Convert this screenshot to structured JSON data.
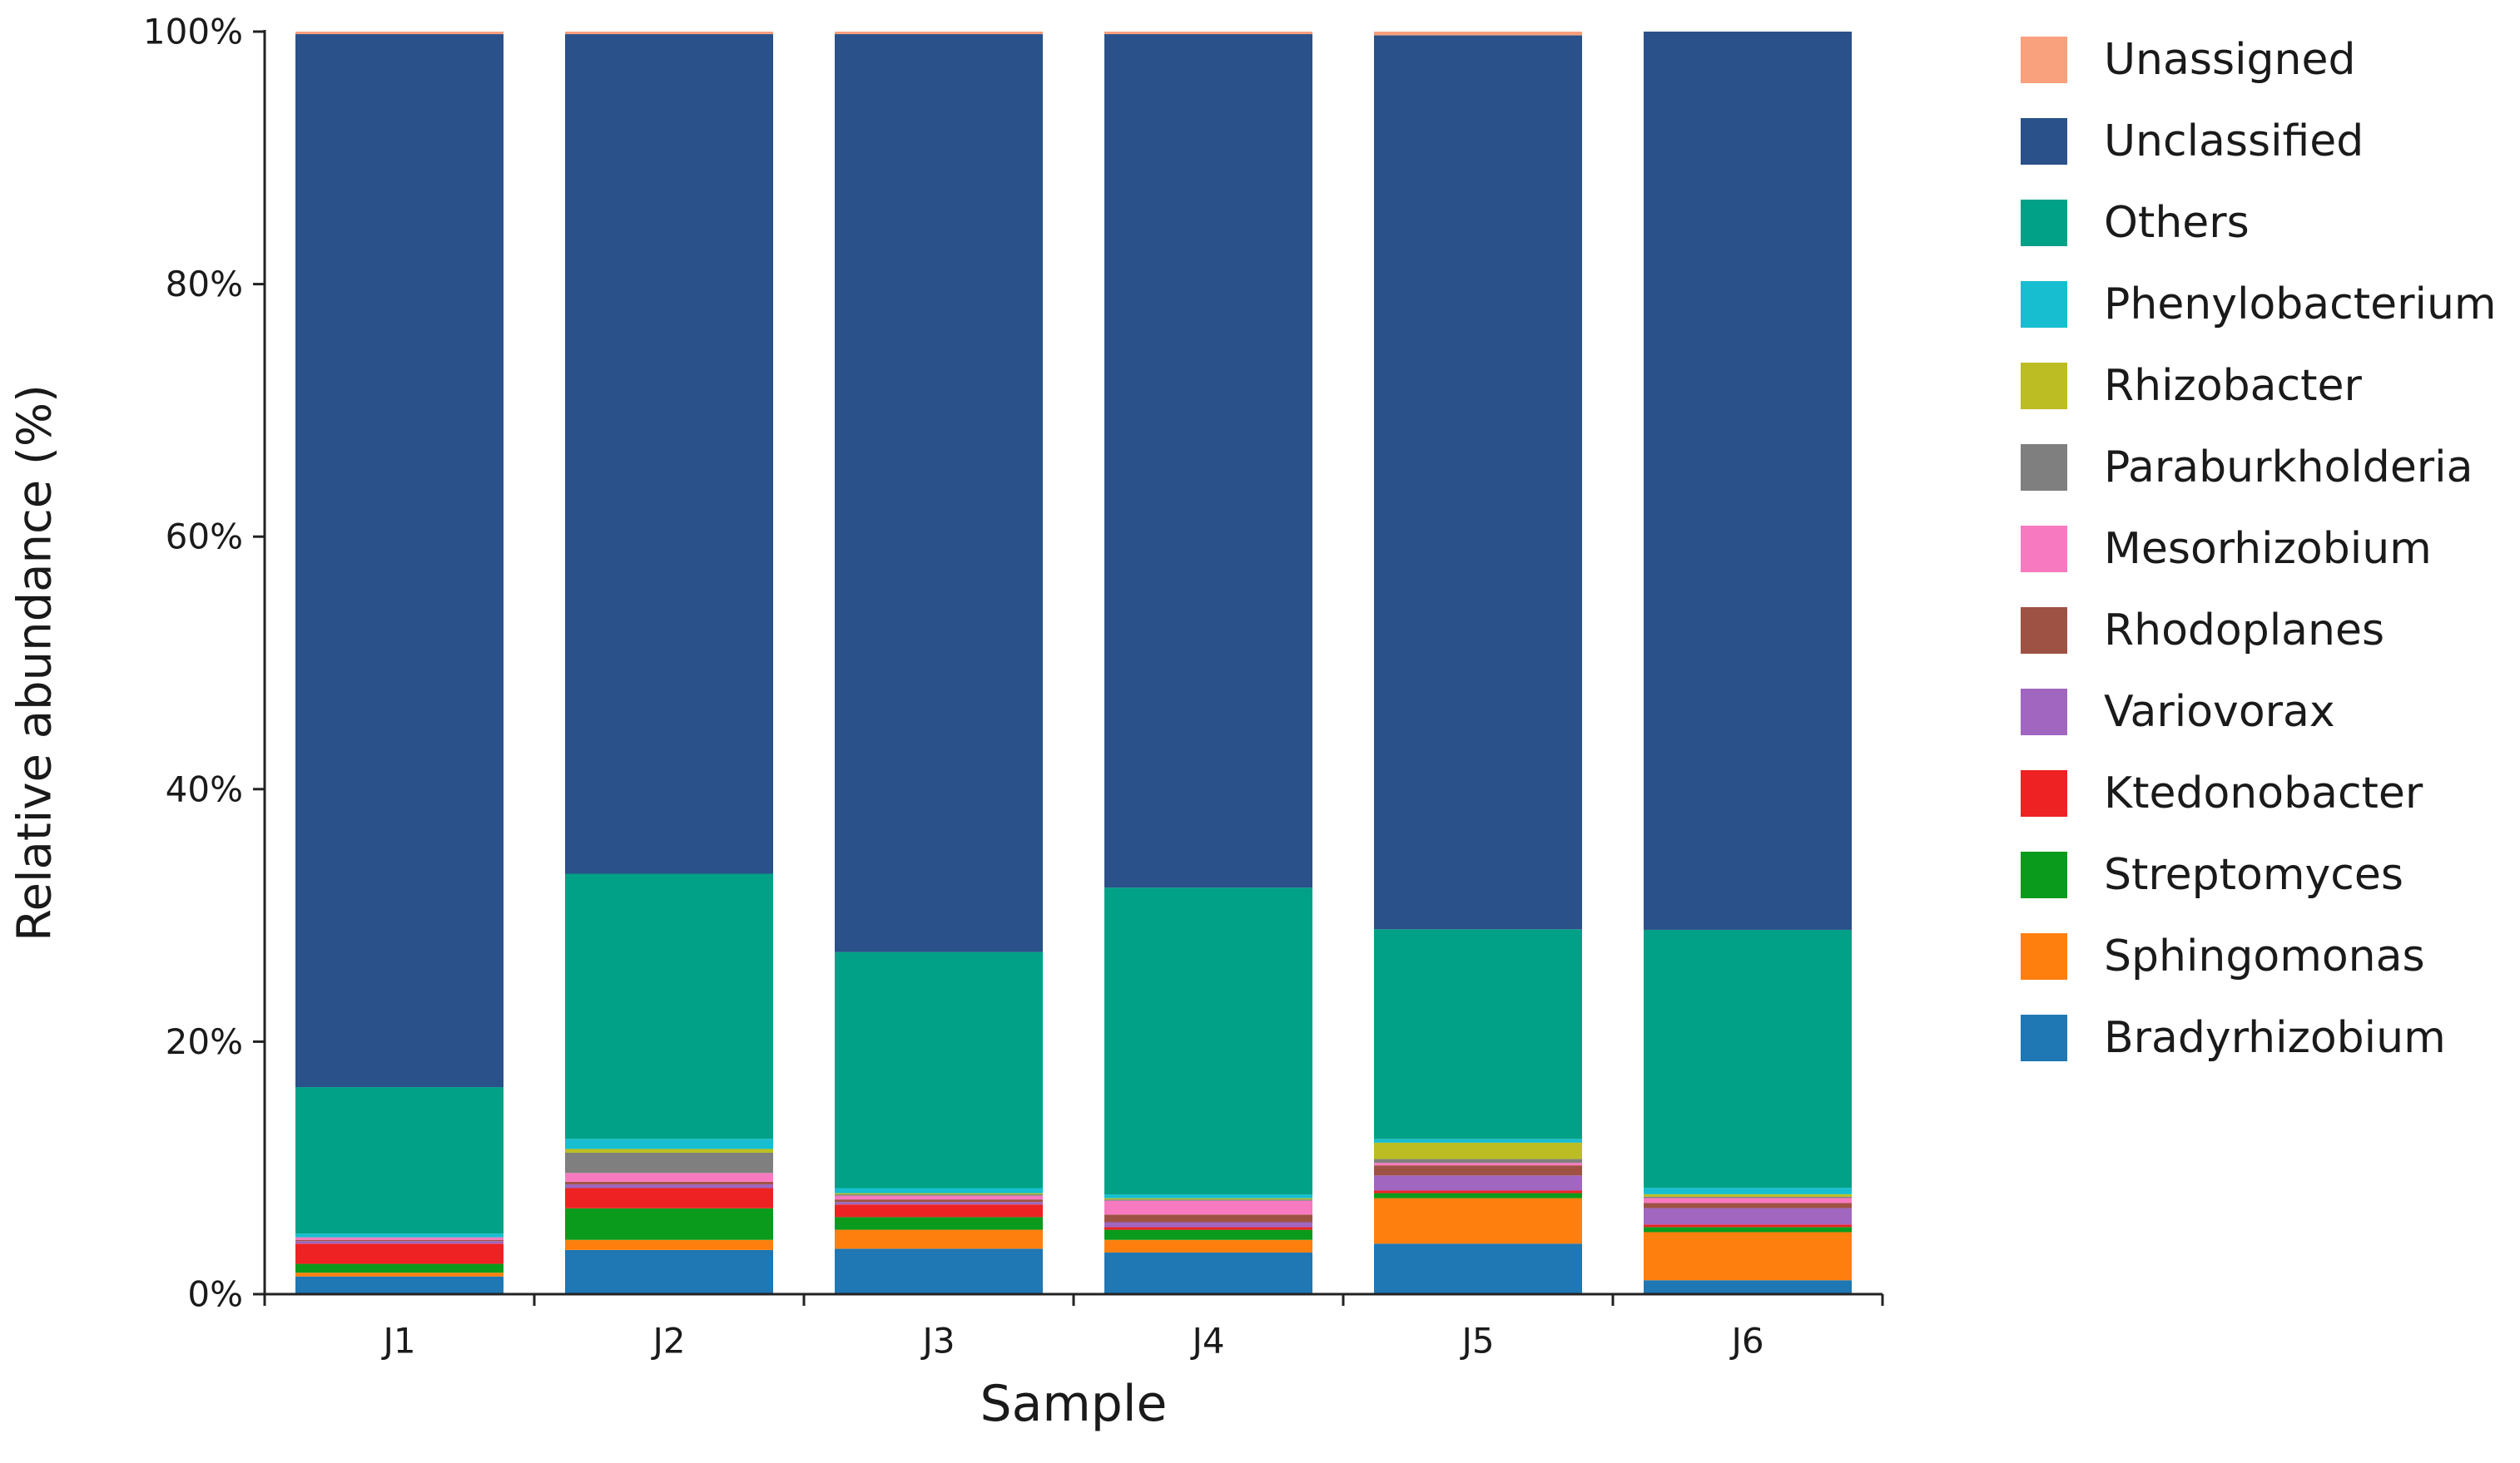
{
  "chart_data": {
    "type": "bar",
    "stacked": true,
    "normalized": true,
    "title": "",
    "xlabel": "Sample",
    "ylabel": "Relative abundance (%)",
    "ylim": [
      0,
      100
    ],
    "yticks": [
      "0%",
      "20%",
      "40%",
      "60%",
      "80%",
      "100%"
    ],
    "categories": [
      "J1",
      "J2",
      "J3",
      "J4",
      "J5",
      "J6"
    ],
    "legend_position": "right",
    "series": [
      {
        "name": "Bradyrhizobium",
        "color": "#1f77b4",
        "values": [
          1.4,
          3.5,
          3.6,
          3.3,
          4.0,
          1.1
        ]
      },
      {
        "name": "Sphingomonas",
        "color": "#ff7f0e",
        "values": [
          0.3,
          0.8,
          1.5,
          1.0,
          3.6,
          3.8
        ]
      },
      {
        "name": "Streptomyces",
        "color": "#0a9b1c",
        "values": [
          0.7,
          2.5,
          1.0,
          0.8,
          0.4,
          0.4
        ]
      },
      {
        "name": "Ktedonobacter",
        "color": "#ee2222",
        "values": [
          1.6,
          1.6,
          1.0,
          0.2,
          0.2,
          0.2
        ]
      },
      {
        "name": "Variovorax",
        "color": "#a066c0",
        "values": [
          0.2,
          0.3,
          0.2,
          0.4,
          1.2,
          1.3
        ]
      },
      {
        "name": "Rhodoplanes",
        "color": "#9e5244",
        "values": [
          0.1,
          0.2,
          0.2,
          0.6,
          0.8,
          0.4
        ]
      },
      {
        "name": "Mesorhizobium",
        "color": "#f77ac0",
        "values": [
          0.2,
          0.7,
          0.3,
          1.1,
          0.2,
          0.4
        ]
      },
      {
        "name": "Paraburkholderia",
        "color": "#7f7f7f",
        "values": [
          0.0,
          1.6,
          0.1,
          0.1,
          0.3,
          0.1
        ]
      },
      {
        "name": "Rhizobacter",
        "color": "#bcbd22",
        "values": [
          0.0,
          0.3,
          0.1,
          0.1,
          1.3,
          0.2
        ]
      },
      {
        "name": "Phenylobacterium",
        "color": "#17becf",
        "values": [
          0.3,
          0.8,
          0.4,
          0.3,
          0.3,
          0.5
        ]
      },
      {
        "name": "Others",
        "color": "#00a186",
        "values": [
          11.6,
          21.0,
          18.7,
          24.3,
          16.6,
          20.4
        ]
      },
      {
        "name": "Unclassified",
        "color": "#2a5189",
        "values": [
          83.4,
          66.5,
          72.7,
          67.6,
          70.8,
          71.0
        ]
      },
      {
        "name": "Unassigned",
        "color": "#f9a07d",
        "values": [
          0.2,
          0.2,
          0.2,
          0.2,
          0.3,
          0.0
        ]
      }
    ]
  }
}
